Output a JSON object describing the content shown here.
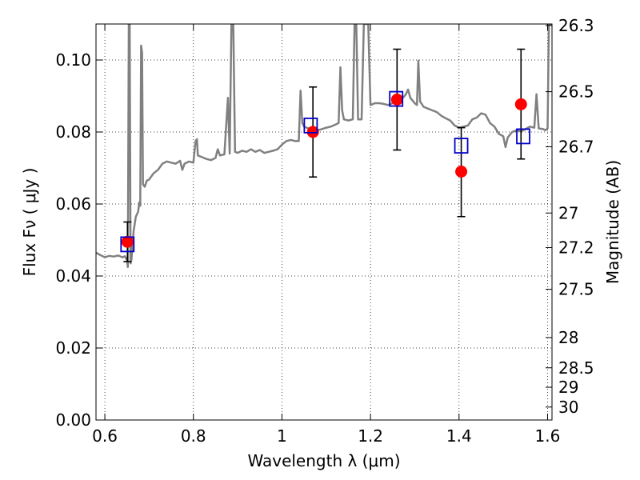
{
  "chart_data": {
    "type": "scatter",
    "xlabel": "Wavelength  λ (μm)",
    "ylabel": "Flux  Fν  ( μJy )",
    "ylabel_right": "Magnitude (AB)",
    "xlim": [
      0.58,
      1.61
    ],
    "ylim": [
      0.0,
      0.11
    ],
    "grid": true,
    "x_ticks": [
      0.6,
      0.8,
      1.0,
      1.2,
      1.4,
      1.6
    ],
    "x_tick_labels": [
      "0.6",
      "0.8",
      "1",
      "1.2",
      "1.4",
      "1.6"
    ],
    "y_ticks": [
      0.0,
      0.02,
      0.04,
      0.06,
      0.08,
      0.1
    ],
    "y_tick_labels": [
      "0.00",
      "0.02",
      "0.04",
      "0.06",
      "0.08",
      "0.10"
    ],
    "right_ticks": [
      {
        "label": "26.3",
        "flux": 0.1096
      },
      {
        "label": "26.5",
        "flux": 0.0912
      },
      {
        "label": "26.7",
        "flux": 0.0759
      },
      {
        "label": "27",
        "flux": 0.0575
      },
      {
        "label": "27.2",
        "flux": 0.0479
      },
      {
        "label": "27.5",
        "flux": 0.0363
      },
      {
        "label": "28",
        "flux": 0.0229
      },
      {
        "label": "28.5",
        "flux": 0.0145
      },
      {
        "label": "29",
        "flux": 0.0091
      },
      {
        "label": "30",
        "flux": 0.0036
      }
    ],
    "series": [
      {
        "kind": "line",
        "color": "#808080",
        "points": [
          [
            0.58,
            0.0465
          ],
          [
            0.59,
            0.0458
          ],
          [
            0.6,
            0.0452
          ],
          [
            0.61,
            0.0456
          ],
          [
            0.62,
            0.0454
          ],
          [
            0.63,
            0.0457
          ],
          [
            0.64,
            0.0452
          ],
          [
            0.645,
            0.0455
          ],
          [
            0.65,
            0.0445
          ],
          [
            0.652,
            0.0425
          ],
          [
            0.654,
            0.11
          ],
          [
            0.656,
            0.11
          ],
          [
            0.658,
            0.0435
          ],
          [
            0.66,
            0.0445
          ],
          [
            0.665,
            0.0525
          ],
          [
            0.67,
            0.0565
          ],
          [
            0.675,
            0.0578
          ],
          [
            0.678,
            0.0605
          ],
          [
            0.68,
            0.0595
          ],
          [
            0.682,
            0.104
          ],
          [
            0.684,
            0.102
          ],
          [
            0.686,
            0.0655
          ],
          [
            0.69,
            0.0648
          ],
          [
            0.695,
            0.0665
          ],
          [
            0.7,
            0.0668
          ],
          [
            0.71,
            0.0685
          ],
          [
            0.72,
            0.0695
          ],
          [
            0.73,
            0.0712
          ],
          [
            0.74,
            0.0718
          ],
          [
            0.75,
            0.0715
          ],
          [
            0.76,
            0.0712
          ],
          [
            0.77,
            0.072
          ],
          [
            0.775,
            0.0695
          ],
          [
            0.78,
            0.0712
          ],
          [
            0.79,
            0.0718
          ],
          [
            0.8,
            0.0715
          ],
          [
            0.805,
            0.0775
          ],
          [
            0.808,
            0.078
          ],
          [
            0.81,
            0.0735
          ],
          [
            0.82,
            0.073
          ],
          [
            0.83,
            0.0725
          ],
          [
            0.84,
            0.0722
          ],
          [
            0.85,
            0.0728
          ],
          [
            0.855,
            0.0752
          ],
          [
            0.86,
            0.0735
          ],
          [
            0.87,
            0.0738
          ],
          [
            0.878,
            0.0895
          ],
          [
            0.882,
            0.074
          ],
          [
            0.886,
            0.11
          ],
          [
            0.89,
            0.11
          ],
          [
            0.894,
            0.0745
          ],
          [
            0.9,
            0.0742
          ],
          [
            0.91,
            0.0748
          ],
          [
            0.92,
            0.0745
          ],
          [
            0.93,
            0.0752
          ],
          [
            0.94,
            0.0745
          ],
          [
            0.95,
            0.075
          ],
          [
            0.96,
            0.0742
          ],
          [
            0.97,
            0.0745
          ],
          [
            0.98,
            0.0748
          ],
          [
            0.99,
            0.0752
          ],
          [
            1.0,
            0.0765
          ],
          [
            1.01,
            0.0775
          ],
          [
            1.02,
            0.0778
          ],
          [
            1.03,
            0.0775
          ],
          [
            1.038,
            0.0775
          ],
          [
            1.042,
            0.0915
          ],
          [
            1.046,
            0.0825
          ],
          [
            1.05,
            0.0815
          ],
          [
            1.06,
            0.081
          ],
          [
            1.07,
            0.0815
          ],
          [
            1.08,
            0.0805
          ],
          [
            1.09,
            0.0808
          ],
          [
            1.1,
            0.0812
          ],
          [
            1.11,
            0.0815
          ],
          [
            1.12,
            0.082
          ],
          [
            1.128,
            0.0825
          ],
          [
            1.132,
            0.098
          ],
          [
            1.136,
            0.086
          ],
          [
            1.14,
            0.0835
          ],
          [
            1.15,
            0.0832
          ],
          [
            1.16,
            0.0835
          ],
          [
            1.164,
            0.11
          ],
          [
            1.168,
            0.11
          ],
          [
            1.172,
            0.0835
          ],
          [
            1.18,
            0.0835
          ],
          [
            1.185,
            0.11
          ],
          [
            1.19,
            0.11
          ],
          [
            1.195,
            0.11
          ],
          [
            1.2,
            0.0875
          ],
          [
            1.21,
            0.088
          ],
          [
            1.22,
            0.088
          ],
          [
            1.23,
            0.0878
          ],
          [
            1.24,
            0.0875
          ],
          [
            1.25,
            0.088
          ],
          [
            1.26,
            0.0885
          ],
          [
            1.27,
            0.089
          ],
          [
            1.28,
            0.0905
          ],
          [
            1.285,
            0.0918
          ],
          [
            1.29,
            0.0895
          ],
          [
            1.3,
            0.088
          ],
          [
            1.305,
            0.0875
          ],
          [
            1.308,
            0.0998
          ],
          [
            1.312,
            0.0885
          ],
          [
            1.32,
            0.087
          ],
          [
            1.33,
            0.0865
          ],
          [
            1.34,
            0.086
          ],
          [
            1.35,
            0.0855
          ],
          [
            1.36,
            0.0845
          ],
          [
            1.37,
            0.0838
          ],
          [
            1.38,
            0.0832
          ],
          [
            1.39,
            0.0818
          ],
          [
            1.4,
            0.0812
          ],
          [
            1.41,
            0.0815
          ],
          [
            1.42,
            0.0818
          ],
          [
            1.43,
            0.0835
          ],
          [
            1.44,
            0.084
          ],
          [
            1.45,
            0.0852
          ],
          [
            1.46,
            0.0848
          ],
          [
            1.47,
            0.0825
          ],
          [
            1.48,
            0.0815
          ],
          [
            1.49,
            0.0795
          ],
          [
            1.5,
            0.0788
          ],
          [
            1.505,
            0.0758
          ],
          [
            1.51,
            0.0785
          ],
          [
            1.52,
            0.08
          ],
          [
            1.53,
            0.0805
          ],
          [
            1.54,
            0.0802
          ],
          [
            1.55,
            0.0808
          ],
          [
            1.56,
            0.0815
          ],
          [
            1.57,
            0.0812
          ],
          [
            1.575,
            0.0905
          ],
          [
            1.58,
            0.081
          ],
          [
            1.59,
            0.0808
          ],
          [
            1.595,
            0.0805
          ],
          [
            1.6,
            0.081
          ],
          [
            1.603,
            0.11
          ],
          [
            1.606,
            0.11
          ],
          [
            1.61,
            0.11
          ]
        ]
      },
      {
        "kind": "scatter-errorbar",
        "color": "#ff0000",
        "points": [
          {
            "x": 0.651,
            "y": 0.0495,
            "ylo": 0.044,
            "yhi": 0.055
          },
          {
            "x": 1.07,
            "y": 0.08,
            "ylo": 0.0675,
            "yhi": 0.0925
          },
          {
            "x": 1.26,
            "y": 0.089,
            "ylo": 0.075,
            "yhi": 0.103
          },
          {
            "x": 1.405,
            "y": 0.069,
            "ylo": 0.0565,
            "yhi": 0.0812
          },
          {
            "x": 1.54,
            "y": 0.0877,
            "ylo": 0.0725,
            "yhi": 0.103
          }
        ]
      },
      {
        "kind": "scatter-square",
        "color": "#0000cc",
        "points": [
          {
            "x": 0.651,
            "y": 0.0488
          },
          {
            "x": 1.065,
            "y": 0.0818
          },
          {
            "x": 1.258,
            "y": 0.0892
          },
          {
            "x": 1.405,
            "y": 0.0762
          },
          {
            "x": 1.545,
            "y": 0.0788
          }
        ]
      }
    ]
  }
}
